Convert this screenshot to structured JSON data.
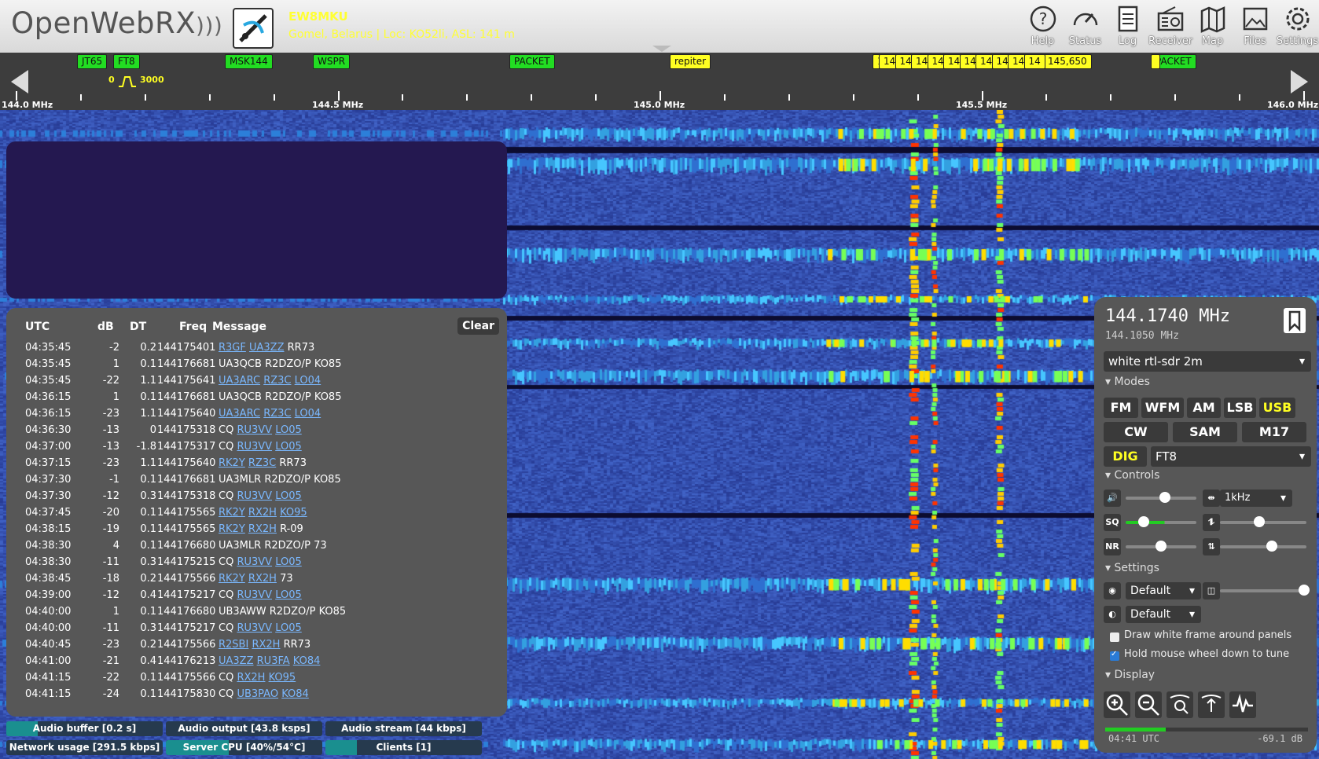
{
  "header": {
    "logo_text": "OpenWebRX",
    "receiver_name": "EW8MKU",
    "receiver_desc": "Gomel, Belarus | Loc: KO52li, ASL: 141 m",
    "nav": [
      {
        "label": "Help",
        "icon": "help-icon"
      },
      {
        "label": "Status",
        "icon": "status-icon"
      },
      {
        "label": "Log",
        "icon": "log-icon"
      },
      {
        "label": "Receiver",
        "icon": "receiver-icon"
      },
      {
        "label": "Map",
        "icon": "map-icon"
      },
      {
        "label": "Files",
        "icon": "files-icon"
      },
      {
        "label": "Settings",
        "icon": "settings-icon"
      }
    ]
  },
  "scale": {
    "labels": [
      "144.0 MHz",
      "144.5 MHz",
      "145.0 MHz",
      "145.5 MHz",
      "146.0 MHz"
    ],
    "filter_low": "0",
    "filter_high": "3000",
    "bookmarks": [
      {
        "label": "JT65",
        "color": "green"
      },
      {
        "label": "FT8",
        "color": "green"
      },
      {
        "label": "MSK144",
        "color": "green"
      },
      {
        "label": "WSPR",
        "color": "green"
      },
      {
        "label": "PACKET",
        "color": "green"
      },
      {
        "label": "repiter",
        "color": "yellow"
      },
      {
        "label": "14",
        "color": "yellow"
      },
      {
        "label": "145,650",
        "color": "yellow"
      },
      {
        "label": "PACKET",
        "color": "green"
      }
    ]
  },
  "decoder": {
    "columns": [
      "UTC",
      "dB",
      "DT",
      "Freq",
      "Message"
    ],
    "clear_label": "Clear",
    "rows": [
      {
        "utc": "04:35:45",
        "db": "-2",
        "dt": "0.2",
        "freq": "144175401",
        "msg": [
          {
            "t": "R3GF",
            "l": true
          },
          {
            "t": "UA3ZZ",
            "l": true
          },
          {
            "t": "RR73",
            "l": false
          }
        ]
      },
      {
        "utc": "04:35:45",
        "db": "1",
        "dt": "0.1",
        "freq": "144176681",
        "msg": [
          {
            "t": "UA3QCB",
            "l": false
          },
          {
            "t": "R2DZO/P",
            "l": false
          },
          {
            "t": "KO85",
            "l": false
          }
        ]
      },
      {
        "utc": "04:35:45",
        "db": "-22",
        "dt": "1.1",
        "freq": "144175641",
        "msg": [
          {
            "t": "UA3ARC",
            "l": true
          },
          {
            "t": "RZ3C",
            "l": true
          },
          {
            "t": "LO04",
            "l": true
          }
        ]
      },
      {
        "utc": "04:36:15",
        "db": "1",
        "dt": "0.1",
        "freq": "144176681",
        "msg": [
          {
            "t": "UA3QCB",
            "l": false
          },
          {
            "t": "R2DZO/P",
            "l": false
          },
          {
            "t": "KO85",
            "l": false
          }
        ]
      },
      {
        "utc": "04:36:15",
        "db": "-23",
        "dt": "1.1",
        "freq": "144175640",
        "msg": [
          {
            "t": "UA3ARC",
            "l": true
          },
          {
            "t": "RZ3C",
            "l": true
          },
          {
            "t": "LO04",
            "l": true
          }
        ]
      },
      {
        "utc": "04:36:30",
        "db": "-13",
        "dt": "0",
        "freq": "144175318",
        "msg": [
          {
            "t": "CQ",
            "l": false
          },
          {
            "t": "RU3VV",
            "l": true
          },
          {
            "t": "LO05",
            "l": true
          }
        ]
      },
      {
        "utc": "04:37:00",
        "db": "-13",
        "dt": "-1.8",
        "freq": "144175317",
        "msg": [
          {
            "t": "CQ",
            "l": false
          },
          {
            "t": "RU3VV",
            "l": true
          },
          {
            "t": "LO05",
            "l": true
          }
        ]
      },
      {
        "utc": "04:37:15",
        "db": "-23",
        "dt": "1.1",
        "freq": "144175640",
        "msg": [
          {
            "t": "RK2Y",
            "l": true
          },
          {
            "t": "RZ3C",
            "l": true
          },
          {
            "t": "RR73",
            "l": false
          }
        ]
      },
      {
        "utc": "04:37:30",
        "db": "-1",
        "dt": "0.1",
        "freq": "144176681",
        "msg": [
          {
            "t": "UA3MLR",
            "l": false
          },
          {
            "t": "R2DZO/P",
            "l": false
          },
          {
            "t": "KO85",
            "l": false
          }
        ]
      },
      {
        "utc": "04:37:30",
        "db": "-12",
        "dt": "0.3",
        "freq": "144175318",
        "msg": [
          {
            "t": "CQ",
            "l": false
          },
          {
            "t": "RU3VV",
            "l": true
          },
          {
            "t": "LO05",
            "l": true
          }
        ]
      },
      {
        "utc": "04:37:45",
        "db": "-20",
        "dt": "0.1",
        "freq": "144175565",
        "msg": [
          {
            "t": "RK2Y",
            "l": true
          },
          {
            "t": "RX2H",
            "l": true
          },
          {
            "t": "KO95",
            "l": true
          }
        ]
      },
      {
        "utc": "04:38:15",
        "db": "-19",
        "dt": "0.1",
        "freq": "144175565",
        "msg": [
          {
            "t": "RK2Y",
            "l": true
          },
          {
            "t": "RX2H",
            "l": true
          },
          {
            "t": "R-09",
            "l": false
          }
        ]
      },
      {
        "utc": "04:38:30",
        "db": "4",
        "dt": "0.1",
        "freq": "144176680",
        "msg": [
          {
            "t": "UA3MLR",
            "l": false
          },
          {
            "t": "R2DZO/P",
            "l": false
          },
          {
            "t": "73",
            "l": false
          }
        ]
      },
      {
        "utc": "04:38:30",
        "db": "-11",
        "dt": "0.3",
        "freq": "144175215",
        "msg": [
          {
            "t": "CQ",
            "l": false
          },
          {
            "t": "RU3VV",
            "l": true
          },
          {
            "t": "LO05",
            "l": true
          }
        ]
      },
      {
        "utc": "04:38:45",
        "db": "-18",
        "dt": "0.2",
        "freq": "144175566",
        "msg": [
          {
            "t": "RK2Y",
            "l": true
          },
          {
            "t": "RX2H",
            "l": true
          },
          {
            "t": "73",
            "l": false
          }
        ]
      },
      {
        "utc": "04:39:00",
        "db": "-12",
        "dt": "0.4",
        "freq": "144175217",
        "msg": [
          {
            "t": "CQ",
            "l": false
          },
          {
            "t": "RU3VV",
            "l": true
          },
          {
            "t": "LO05",
            "l": true
          }
        ]
      },
      {
        "utc": "04:40:00",
        "db": "1",
        "dt": "0.1",
        "freq": "144176680",
        "msg": [
          {
            "t": "UB3AWW",
            "l": false
          },
          {
            "t": "R2DZO/P",
            "l": false
          },
          {
            "t": "KO85",
            "l": false
          }
        ]
      },
      {
        "utc": "04:40:00",
        "db": "-11",
        "dt": "0.3",
        "freq": "144175217",
        "msg": [
          {
            "t": "CQ",
            "l": false
          },
          {
            "t": "RU3VV",
            "l": true
          },
          {
            "t": "LO05",
            "l": true
          }
        ]
      },
      {
        "utc": "04:40:45",
        "db": "-23",
        "dt": "0.2",
        "freq": "144175566",
        "msg": [
          {
            "t": "R2SBI",
            "l": true
          },
          {
            "t": "RX2H",
            "l": true
          },
          {
            "t": "RR73",
            "l": false
          }
        ]
      },
      {
        "utc": "04:41:00",
        "db": "-21",
        "dt": "0.4",
        "freq": "144176213",
        "msg": [
          {
            "t": "UA3ZZ",
            "l": true
          },
          {
            "t": "RU3FA",
            "l": true
          },
          {
            "t": "KO84",
            "l": true
          }
        ]
      },
      {
        "utc": "04:41:15",
        "db": "-22",
        "dt": "0.1",
        "freq": "144175566",
        "msg": [
          {
            "t": "CQ",
            "l": false
          },
          {
            "t": "RX2H",
            "l": true
          },
          {
            "t": "KO95",
            "l": true
          }
        ]
      },
      {
        "utc": "04:41:15",
        "db": "-24",
        "dt": "0.1",
        "freq": "144175830",
        "msg": [
          {
            "t": "CQ",
            "l": false
          },
          {
            "t": "UB3PAO",
            "l": true
          },
          {
            "t": "KO84",
            "l": true
          }
        ]
      }
    ]
  },
  "status": {
    "audio_buffer": {
      "label": "Audio buffer [0.2 s]",
      "level": 0.2
    },
    "audio_output": {
      "label": "Audio output [43.8 ksps]",
      "level": 0.0
    },
    "audio_stream": {
      "label": "Audio stream [44 kbps]",
      "level": 0.0
    },
    "network": {
      "label": "Network usage [291.5 kbps]",
      "level": 0.0
    },
    "server_cpu": {
      "label": "Server CPU [40%/54°C]",
      "level": 0.4
    },
    "clients": {
      "label": "Clients [1]",
      "level": 0.2
    }
  },
  "receiver": {
    "frequency": "144.1740 MHz",
    "offset_frequency": "144.1050 MHz",
    "profile": "white rtl-sdr 2m",
    "sections": {
      "modes": "Modes",
      "controls": "Controls",
      "settings": "Settings",
      "display": "Display"
    },
    "modes_row1": [
      "FM",
      "WFM",
      "AM",
      "LSB",
      "USB"
    ],
    "modes_row2": [
      "CW",
      "SAM",
      "M17"
    ],
    "active_mode": "USB",
    "dig_label": "DIG",
    "digital_mode": "FT8",
    "step": "1kHz",
    "volume": 0.55,
    "squelch": 0.25,
    "nr": 0.5,
    "right_slider_1": 0.45,
    "right_slider_2": 0.6,
    "zoom": 0.97,
    "theme": "Default",
    "contrast": "Default",
    "icon_labels": {
      "squelch": "SQ",
      "nr": "NR"
    },
    "opt_frame": "Draw white frame around panels",
    "opt_frame_checked": false,
    "opt_wheel": "Hold mouse wheel down to tune",
    "opt_wheel_checked": true,
    "clock": "04:41 UTC",
    "signal_db": "-69.1 dB",
    "signal_level": 0.3
  }
}
